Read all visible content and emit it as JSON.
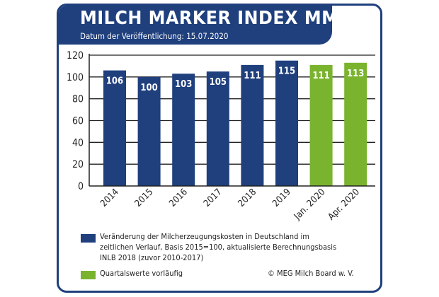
{
  "header": {
    "title": "MILCH MARKER INDEX MMI",
    "subtitle": "Datum der Veröffentlichung: 15.07.2020"
  },
  "colors": {
    "blue": "#1f3f7d",
    "green": "#7ab32e"
  },
  "chart_data": {
    "type": "bar",
    "title": "MILCH MARKER INDEX MMI",
    "categories": [
      "2014",
      "2015",
      "2016",
      "2017",
      "2018",
      "2019",
      "Jan. 2020",
      "Apr. 2020"
    ],
    "values": [
      106,
      100,
      103,
      105,
      111,
      115,
      111,
      113
    ],
    "series_type": [
      "annual",
      "annual",
      "annual",
      "annual",
      "annual",
      "annual",
      "quarterly",
      "quarterly"
    ],
    "ylim": [
      0,
      120
    ],
    "yticks": [
      0,
      20,
      40,
      60,
      80,
      100,
      120
    ],
    "grid": true,
    "xlabel": "",
    "ylabel": ""
  },
  "legend": {
    "annual": "Veränderung der Milcherzeugungskosten in Deutschland im zeitlichen Verlauf, Basis 2015=100, aktualisierte Berechnungsbasis INLB 2018 (zuvor 2010-2017)",
    "quarterly": "Quartalswerte vorläufig"
  },
  "copyright": "© MEG Milch Board w. V."
}
